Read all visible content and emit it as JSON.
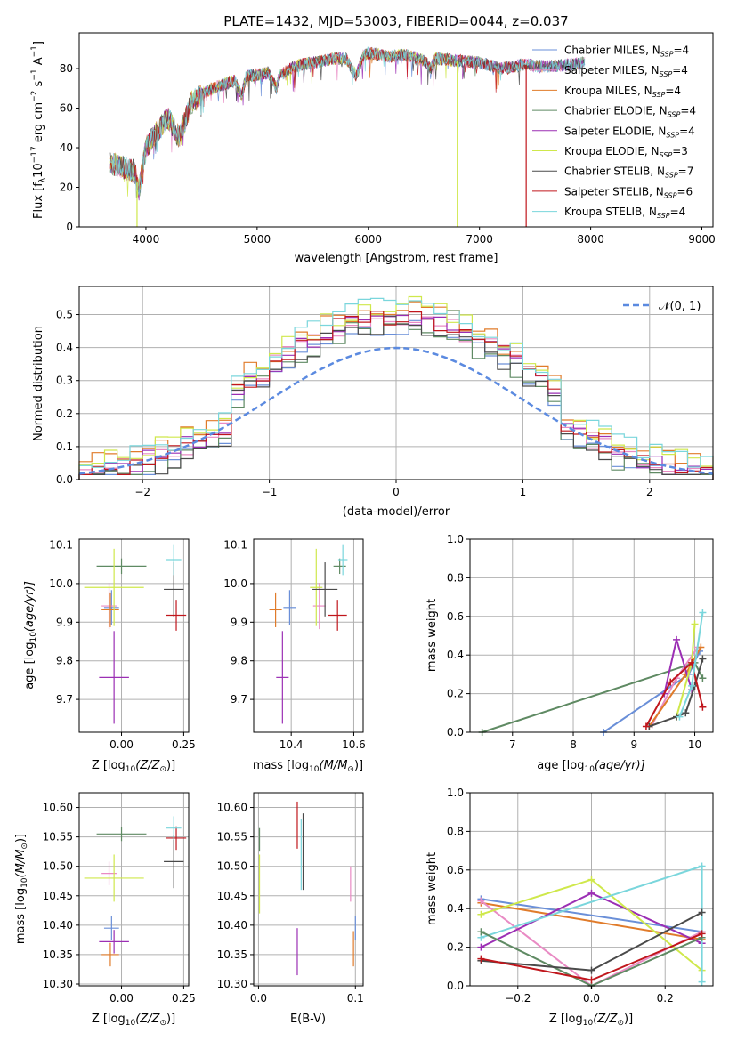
{
  "colors": {
    "Chabrier MILES": "#6a8fd8",
    "Salpeter MILES": "#e98bc4",
    "Kroupa MILES": "#e07b2a",
    "Chabrier ELODIE": "#5f8a63",
    "Salpeter ELODIE": "#9b2fb4",
    "Kroupa ELODIE": "#cfe84b",
    "Chabrier STELIB": "#4a4a4a",
    "Salpeter STELIB": "#c0161c",
    "Kroupa STELIB": "#7ad6dc",
    "normal": "#5b8ae0",
    "grid": "#b0b0b0"
  },
  "chart_data": [
    {
      "id": "spectrum",
      "type": "line",
      "title": "PLATE=1432, MJD=53003, FIBERID=0044, z=0.037",
      "xlabel": "wavelength [Angstrom, rest frame]",
      "ylabel_main": "Flux [f",
      "ylabel_sub": "λ",
      "ylabel_rest": "10",
      "ylabel_exp1": "−17",
      "ylabel_mid": " erg cm",
      "ylabel_exp2": "−2",
      "ylabel_mid2": " s",
      "ylabel_exp3": "−1",
      "ylabel_end": " A",
      "ylabel_exp4": "−1",
      "ylabel_close": "]",
      "xlim": [
        3400,
        9100
      ],
      "ylim": [
        0,
        98
      ],
      "xticks": [
        4000,
        5000,
        6000,
        7000,
        8000,
        9000
      ],
      "yticks": [
        0,
        20,
        40,
        60,
        80
      ],
      "legend": [
        {
          "label": "Chabrier MILES, N",
          "sub": "SSP",
          "val": "=4",
          "key": "Chabrier MILES"
        },
        {
          "label": "Salpeter MILES, N",
          "sub": "SSP",
          "val": "=4",
          "key": "Salpeter MILES"
        },
        {
          "label": "Kroupa MILES, N",
          "sub": "SSP",
          "val": "=4",
          "key": "Kroupa MILES"
        },
        {
          "label": "Chabrier ELODIE, N",
          "sub": "SSP",
          "val": "=4",
          "key": "Chabrier ELODIE"
        },
        {
          "label": "Salpeter ELODIE, N",
          "sub": "SSP",
          "val": "=4",
          "key": "Salpeter ELODIE"
        },
        {
          "label": "Kroupa ELODIE, N",
          "sub": "SSP",
          "val": "=3",
          "key": "Kroupa ELODIE"
        },
        {
          "label": "Chabrier STELIB, N",
          "sub": "SSP",
          "val": "=7",
          "key": "Chabrier STELIB"
        },
        {
          "label": "Salpeter STELIB, N",
          "sub": "SSP",
          "val": "=6",
          "key": "Salpeter STELIB"
        },
        {
          "label": "Kroupa STELIB, N",
          "sub": "SSP",
          "val": "=4",
          "key": "Kroupa STELIB"
        }
      ],
      "spectrum_anchor_points": [
        [
          3680,
          32
        ],
        [
          3800,
          30
        ],
        [
          3900,
          28
        ],
        [
          3935,
          18
        ],
        [
          3970,
          30
        ],
        [
          4000,
          40
        ],
        [
          4100,
          48
        ],
        [
          4200,
          55
        ],
        [
          4300,
          45
        ],
        [
          4400,
          62
        ],
        [
          4500,
          67
        ],
        [
          4600,
          70
        ],
        [
          4700,
          72
        ],
        [
          4800,
          74
        ],
        [
          4861,
          66
        ],
        [
          4900,
          76
        ],
        [
          5000,
          77
        ],
        [
          5100,
          78
        ],
        [
          5175,
          70
        ],
        [
          5200,
          76
        ],
        [
          5300,
          80
        ],
        [
          5400,
          82
        ],
        [
          5500,
          83
        ],
        [
          5600,
          84
        ],
        [
          5700,
          85
        ],
        [
          5800,
          85
        ],
        [
          5893,
          76
        ],
        [
          5950,
          86
        ],
        [
          6000,
          88
        ],
        [
          6100,
          87
        ],
        [
          6200,
          86
        ],
        [
          6300,
          87
        ],
        [
          6400,
          86
        ],
        [
          6500,
          84
        ],
        [
          6563,
          80
        ],
        [
          6600,
          85
        ],
        [
          6800,
          84
        ],
        [
          7000,
          83
        ],
        [
          7200,
          80
        ],
        [
          7400,
          82
        ],
        [
          7600,
          81
        ],
        [
          7800,
          82
        ],
        [
          7950,
          83
        ]
      ],
      "line_end_x": {
        "Kroupa ELODIE": 6800,
        "Salpeter STELIB": 7420,
        "Kroupa MILES": 7900
      },
      "drops": [
        {
          "x": 3920,
          "key": "Kroupa ELODIE"
        },
        {
          "x": 6800,
          "key": "Kroupa ELODIE"
        },
        {
          "x": 7420,
          "key": "Salpeter STELIB"
        }
      ]
    },
    {
      "id": "residuals",
      "type": "histogram",
      "xlabel": "(data-model)/error",
      "ylabel": "Normed distribution",
      "xlim": [
        -2.5,
        2.5
      ],
      "ylim": [
        0,
        0.585
      ],
      "xticks": [
        -2,
        -1,
        0,
        1,
        2
      ],
      "xtick_labels": [
        "−2",
        "−1",
        "0",
        "1",
        "2"
      ],
      "yticks": [
        0.0,
        0.1,
        0.2,
        0.3,
        0.4,
        0.5
      ],
      "ytick_labels": [
        "0.0",
        "0.1",
        "0.2",
        "0.3",
        "0.4",
        "0.5"
      ],
      "bin_width": 0.1,
      "legend": "𝒩(0, 1)",
      "grid": true
    },
    {
      "id": "Z_vs_age",
      "type": "errorbar",
      "xlabel_main": "Z [log",
      "xlabel_sub": "10",
      "xlabel_end": "(Z/Z",
      "xlabel_sun": "⊙",
      "xlabel_close": ")]",
      "ylabel_main": "age  [log",
      "ylabel_sub": "10",
      "ylabel_end": "(age/yr)]",
      "xlim": [
        -0.17,
        0.27
      ],
      "ylim": [
        9.615,
        10.115
      ],
      "xticks": [
        0.0,
        0.25
      ],
      "xtick_labels": [
        "0.00",
        "0.25"
      ],
      "yticks": [
        9.7,
        9.8,
        9.9,
        10.0,
        10.1
      ],
      "ytick_labels": [
        "9.7",
        "9.8",
        "9.9",
        "10.0",
        "10.1"
      ],
      "points": [
        {
          "key": "Chabrier MILES",
          "x": -0.04,
          "y": 9.938,
          "xerr": 0.03,
          "yerr": 0.045
        },
        {
          "key": "Salpeter MILES",
          "x": -0.05,
          "y": 9.942,
          "xerr": 0.03,
          "yerr": 0.06
        },
        {
          "key": "Kroupa MILES",
          "x": -0.045,
          "y": 9.932,
          "xerr": 0.035,
          "yerr": 0.045
        },
        {
          "key": "Chabrier ELODIE",
          "x": 0.0,
          "y": 10.045,
          "xerr": 0.1,
          "yerr": 0.02
        },
        {
          "key": "Salpeter ELODIE",
          "x": -0.03,
          "y": 9.757,
          "xerr": 0.06,
          "yerr": 0.12
        },
        {
          "key": "Kroupa ELODIE",
          "x": -0.03,
          "y": 9.99,
          "xerr": 0.12,
          "yerr": 0.1
        },
        {
          "key": "Chabrier STELIB",
          "x": 0.21,
          "y": 9.985,
          "xerr": 0.04,
          "yerr": 0.07
        },
        {
          "key": "Salpeter STELIB",
          "x": 0.22,
          "y": 9.918,
          "xerr": 0.04,
          "yerr": 0.04
        },
        {
          "key": "Kroupa STELIB",
          "x": 0.21,
          "y": 10.062,
          "xerr": 0.03,
          "yerr": 0.04
        }
      ]
    },
    {
      "id": "mass_vs_age",
      "type": "errorbar",
      "xlabel_main": "mass [log",
      "xlabel_sub": "10",
      "xlabel_end": "(M/M",
      "xlabel_sun": "⊙",
      "xlabel_close": ")]",
      "xlim": [
        10.28,
        10.63
      ],
      "ylim": [
        9.615,
        10.115
      ],
      "xticks": [
        10.4,
        10.6
      ],
      "xtick_labels": [
        "10.4",
        "10.6"
      ],
      "yticks": [
        9.7,
        9.8,
        9.9,
        10.0,
        10.1
      ],
      "ytick_labels": [
        "9.7",
        "9.8",
        "9.9",
        "10.0",
        "10.1"
      ],
      "points": [
        {
          "key": "Chabrier MILES",
          "x": 10.395,
          "y": 9.938,
          "xerr": 0.02,
          "yerr": 0.045
        },
        {
          "key": "Salpeter MILES",
          "x": 10.49,
          "y": 9.942,
          "xerr": 0.02,
          "yerr": 0.06
        },
        {
          "key": "Kroupa MILES",
          "x": 10.35,
          "y": 9.932,
          "xerr": 0.02,
          "yerr": 0.045
        },
        {
          "key": "Chabrier ELODIE",
          "x": 10.555,
          "y": 10.045,
          "xerr": 0.02,
          "yerr": 0.02
        },
        {
          "key": "Salpeter ELODIE",
          "x": 10.372,
          "y": 9.757,
          "xerr": 0.02,
          "yerr": 0.12
        },
        {
          "key": "Kroupa ELODIE",
          "x": 10.48,
          "y": 9.99,
          "xerr": 0.02,
          "yerr": 0.1
        },
        {
          "key": "Chabrier STELIB",
          "x": 10.508,
          "y": 9.985,
          "xerr": 0.04,
          "yerr": 0.07
        },
        {
          "key": "Salpeter STELIB",
          "x": 10.548,
          "y": 9.918,
          "xerr": 0.03,
          "yerr": 0.04
        },
        {
          "key": "Kroupa STELIB",
          "x": 10.565,
          "y": 10.062,
          "xerr": 0.015,
          "yerr": 0.04
        }
      ]
    },
    {
      "id": "age_weights",
      "type": "line",
      "xlabel_main": "age  [log",
      "xlabel_sub": "10",
      "xlabel_end": "(age/yr)]",
      "ylabel": "mass weight",
      "xlim": [
        6.3,
        10.3
      ],
      "ylim": [
        0,
        1
      ],
      "xticks": [
        7,
        8,
        9,
        10
      ],
      "yticks": [
        0.0,
        0.2,
        0.4,
        0.6,
        0.8,
        1.0
      ],
      "ytick_labels": [
        "0.0",
        "0.2",
        "0.4",
        "0.6",
        "0.8",
        "1.0"
      ],
      "series": [
        {
          "key": "Chabrier ELODIE",
          "x": [
            6.5,
            10.0,
            10.13
          ],
          "y": [
            0.0,
            0.36,
            0.28
          ]
        },
        {
          "key": "Chabrier MILES",
          "x": [
            8.5,
            9.9,
            10.08
          ],
          "y": [
            0.0,
            0.3,
            0.42
          ]
        },
        {
          "key": "Salpeter MILES",
          "x": [
            9.3,
            9.7,
            10.05
          ],
          "y": [
            0.04,
            0.28,
            0.44
          ]
        },
        {
          "key": "Kroupa MILES",
          "x": [
            9.25,
            9.85,
            10.1
          ],
          "y": [
            0.03,
            0.3,
            0.44
          ]
        },
        {
          "key": "Salpeter ELODIE",
          "x": [
            9.5,
            9.7,
            9.95
          ],
          "y": [
            0.2,
            0.48,
            0.22
          ]
        },
        {
          "key": "Kroupa ELODIE",
          "x": [
            9.7,
            9.95,
            10.0
          ],
          "y": [
            0.08,
            0.36,
            0.56
          ]
        },
        {
          "key": "Chabrier STELIB",
          "x": [
            9.25,
            9.7,
            9.85,
            10.0,
            10.13
          ],
          "y": [
            0.03,
            0.08,
            0.1,
            0.24,
            0.38
          ]
        },
        {
          "key": "Salpeter STELIB",
          "x": [
            9.2,
            9.6,
            9.95,
            10.13
          ],
          "y": [
            0.03,
            0.26,
            0.36,
            0.13
          ]
        },
        {
          "key": "Kroupa STELIB",
          "x": [
            9.75,
            9.95,
            10.13
          ],
          "y": [
            0.08,
            0.24,
            0.62
          ]
        }
      ]
    },
    {
      "id": "Z_vs_mass",
      "type": "errorbar",
      "xlabel_main": "Z [log",
      "xlabel_sub": "10",
      "xlabel_end": "(Z/Z",
      "xlabel_sun": "⊙",
      "xlabel_close": ")]",
      "ylabel_main": "mass [log",
      "ylabel_sub": "10",
      "ylabel_end": "(M/M",
      "ylabel_sun": "⊙",
      "ylabel_close": ")]",
      "xlim": [
        -0.17,
        0.27
      ],
      "ylim": [
        10.297,
        10.625
      ],
      "xticks": [
        0.0,
        0.25
      ],
      "xtick_labels": [
        "0.00",
        "0.25"
      ],
      "yticks": [
        10.3,
        10.35,
        10.4,
        10.45,
        10.5,
        10.55,
        10.6
      ],
      "ytick_labels": [
        "10.30",
        "10.35",
        "10.40",
        "10.45",
        "10.50",
        "10.55",
        "10.60"
      ],
      "points": [
        {
          "key": "Chabrier MILES",
          "x": -0.04,
          "y": 10.395,
          "xerr": 0.03,
          "yerr": 0.02
        },
        {
          "key": "Salpeter MILES",
          "x": -0.05,
          "y": 10.488,
          "xerr": 0.03,
          "yerr": 0.02
        },
        {
          "key": "Kroupa MILES",
          "x": -0.045,
          "y": 10.35,
          "xerr": 0.035,
          "yerr": 0.02
        },
        {
          "key": "Chabrier ELODIE",
          "x": 0.0,
          "y": 10.555,
          "xerr": 0.1,
          "yerr": 0.012
        },
        {
          "key": "Salpeter ELODIE",
          "x": -0.03,
          "y": 10.372,
          "xerr": 0.06,
          "yerr": 0.02
        },
        {
          "key": "Kroupa ELODIE",
          "x": -0.03,
          "y": 10.48,
          "xerr": 0.12,
          "yerr": 0.04
        },
        {
          "key": "Chabrier STELIB",
          "x": 0.21,
          "y": 10.508,
          "xerr": 0.04,
          "yerr": 0.045
        },
        {
          "key": "Salpeter STELIB",
          "x": 0.22,
          "y": 10.548,
          "xerr": 0.04,
          "yerr": 0.02
        },
        {
          "key": "Kroupa STELIB",
          "x": 0.21,
          "y": 10.565,
          "xerr": 0.03,
          "yerr": 0.02
        }
      ]
    },
    {
      "id": "ebv_vs_mass",
      "type": "errorbar",
      "xlabel": "E(B-V)",
      "xlim": [
        -0.005,
        0.108
      ],
      "ylim": [
        10.297,
        10.625
      ],
      "xticks": [
        0.0,
        0.1
      ],
      "xtick_labels": [
        "0.0",
        "0.1"
      ],
      "yticks": [
        10.3,
        10.35,
        10.4,
        10.45,
        10.5,
        10.55,
        10.6
      ],
      "ytick_labels": [
        "10.30",
        "10.35",
        "10.40",
        "10.45",
        "10.50",
        "10.55",
        "10.60"
      ],
      "points": [
        {
          "key": "Chabrier MILES",
          "x": 0.1,
          "y": 10.395,
          "xerr": 0.0,
          "yerr": 0.02
        },
        {
          "key": "Salpeter MILES",
          "x": 0.095,
          "y": 10.47,
          "xerr": 0.0,
          "yerr": 0.03
        },
        {
          "key": "Kroupa MILES",
          "x": 0.098,
          "y": 10.36,
          "xerr": 0.0,
          "yerr": 0.03
        },
        {
          "key": "Chabrier ELODIE",
          "x": 0.001,
          "y": 10.545,
          "xerr": 0.0,
          "yerr": 0.02
        },
        {
          "key": "Salpeter ELODIE",
          "x": 0.04,
          "y": 10.355,
          "xerr": 0.0,
          "yerr": 0.04
        },
        {
          "key": "Kroupa ELODIE",
          "x": 0.001,
          "y": 10.47,
          "xerr": 0.0,
          "yerr": 0.05
        },
        {
          "key": "Chabrier STELIB",
          "x": 0.046,
          "y": 10.525,
          "xerr": 0.0,
          "yerr": 0.065
        },
        {
          "key": "Salpeter STELIB",
          "x": 0.04,
          "y": 10.57,
          "xerr": 0.0,
          "yerr": 0.04
        },
        {
          "key": "Kroupa STELIB",
          "x": 0.044,
          "y": 10.52,
          "xerr": 0.0,
          "yerr": 0.06
        }
      ]
    },
    {
      "id": "Z_weights",
      "type": "line",
      "xlabel_main": "Z [log",
      "xlabel_sub": "10",
      "xlabel_end": "(Z/Z",
      "xlabel_sun": "⊙",
      "xlabel_close": ")]",
      "ylabel": "mass weight",
      "xlim": [
        -0.33,
        0.33
      ],
      "ylim": [
        0,
        1
      ],
      "xticks": [
        -0.2,
        0.0,
        0.2
      ],
      "xtick_labels": [
        "−0.2",
        "0.0",
        "0.2"
      ],
      "yticks": [
        0.0,
        0.2,
        0.4,
        0.6,
        0.8,
        1.0
      ],
      "ytick_labels": [
        "0.0",
        "0.2",
        "0.4",
        "0.6",
        "0.8",
        "1.0"
      ],
      "series": [
        {
          "key": "Chabrier MILES",
          "x": [
            -0.3,
            0.3
          ],
          "y": [
            0.45,
            0.28
          ]
        },
        {
          "key": "Kroupa MILES",
          "x": [
            -0.3,
            0.3
          ],
          "y": [
            0.43,
            0.24
          ]
        },
        {
          "key": "Salpeter MILES",
          "x": [
            -0.3,
            0.0,
            0.3
          ],
          "y": [
            0.44,
            0.0,
            0.28
          ]
        },
        {
          "key": "Salpeter ELODIE",
          "x": [
            -0.3,
            0.0,
            0.3
          ],
          "y": [
            0.2,
            0.48,
            0.22
          ]
        },
        {
          "key": "Kroupa ELODIE",
          "x": [
            -0.3,
            0.0,
            0.3
          ],
          "y": [
            0.37,
            0.55,
            0.08
          ]
        },
        {
          "key": "Kroupa STELIB",
          "x": [
            -0.3,
            0.3,
            0.3
          ],
          "y": [
            0.25,
            0.62,
            0.02
          ]
        },
        {
          "key": "Chabrier ELODIE",
          "x": [
            -0.3,
            0.0,
            0.3
          ],
          "y": [
            0.28,
            0.0,
            0.25
          ]
        },
        {
          "key": "Chabrier STELIB",
          "x": [
            -0.3,
            0.0,
            0.3
          ],
          "y": [
            0.13,
            0.08,
            0.38
          ]
        },
        {
          "key": "Salpeter STELIB",
          "x": [
            -0.3,
            0.0,
            0.3
          ],
          "y": [
            0.14,
            0.03,
            0.27
          ]
        }
      ]
    }
  ]
}
